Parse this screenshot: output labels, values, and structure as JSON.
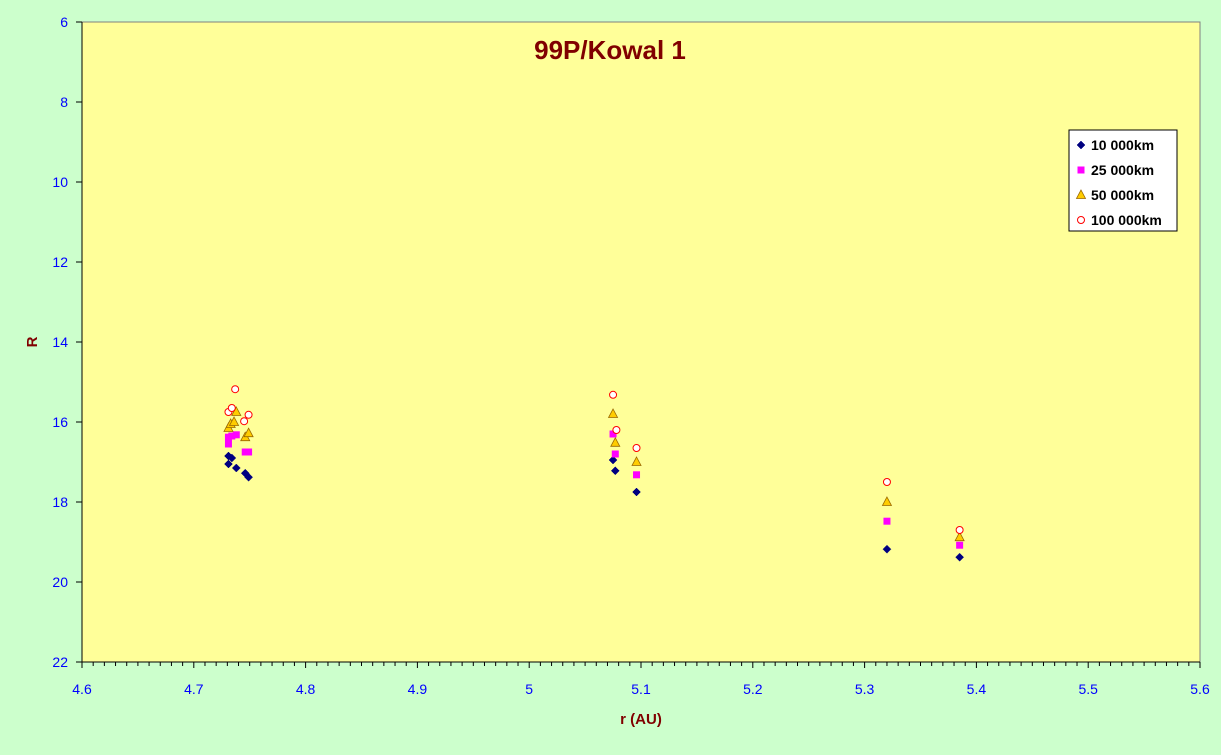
{
  "chart_data": {
    "type": "scatter",
    "title": "99P/Kowal 1",
    "xlabel": "r (AU)",
    "ylabel": "R",
    "xlim": [
      4.6,
      5.6
    ],
    "ylim": [
      6,
      22
    ],
    "y_inverted": true,
    "x_ticks": [
      "4.6",
      "4.7",
      "4.8",
      "4.9",
      "5",
      "5.1",
      "5.2",
      "5.3",
      "5.4",
      "5.5",
      "5.6"
    ],
    "y_ticks": [
      "6",
      "8",
      "10",
      "12",
      "14",
      "16",
      "18",
      "20",
      "22"
    ],
    "grid": false,
    "legend_position": "top-right",
    "colors": {
      "plot_background": "#ffff99",
      "page_background": "#ccffcc",
      "title": "#800000",
      "axis_label": "#800000",
      "tick_label": "#0000ff"
    },
    "series": [
      {
        "name": "10 000km",
        "marker": "diamond",
        "color": "#000080",
        "points": [
          [
            4.731,
            16.85
          ],
          [
            4.731,
            17.05
          ],
          [
            4.734,
            16.9
          ],
          [
            4.738,
            17.15
          ],
          [
            4.746,
            17.28
          ],
          [
            4.749,
            17.38
          ],
          [
            5.075,
            16.95
          ],
          [
            5.077,
            17.22
          ],
          [
            5.096,
            17.75
          ],
          [
            5.32,
            19.18
          ],
          [
            5.385,
            19.38
          ]
        ]
      },
      {
        "name": "25 000km",
        "marker": "square",
        "color": "#ff00ff",
        "points": [
          [
            4.731,
            16.55
          ],
          [
            4.731,
            16.38
          ],
          [
            4.734,
            16.35
          ],
          [
            4.738,
            16.32
          ],
          [
            4.746,
            16.75
          ],
          [
            4.749,
            16.75
          ],
          [
            5.075,
            16.3
          ],
          [
            5.077,
            16.8
          ],
          [
            5.096,
            17.32
          ],
          [
            5.32,
            18.48
          ],
          [
            5.385,
            19.08
          ]
        ]
      },
      {
        "name": "50 000km",
        "marker": "triangle",
        "color": "#ffcc00",
        "points": [
          [
            4.731,
            16.15
          ],
          [
            4.733,
            16.05
          ],
          [
            4.736,
            16.0
          ],
          [
            4.738,
            15.75
          ],
          [
            4.746,
            16.38
          ],
          [
            4.749,
            16.28
          ],
          [
            5.075,
            15.8
          ],
          [
            5.077,
            16.52
          ],
          [
            5.096,
            17.0
          ],
          [
            5.32,
            18.0
          ],
          [
            5.385,
            18.88
          ]
        ]
      },
      {
        "name": "100 000km",
        "marker": "circle",
        "color": "#ff0000",
        "points": [
          [
            4.731,
            15.75
          ],
          [
            4.734,
            15.65
          ],
          [
            4.737,
            15.18
          ],
          [
            4.745,
            15.98
          ],
          [
            4.749,
            15.82
          ],
          [
            5.075,
            15.32
          ],
          [
            5.078,
            16.2
          ],
          [
            5.096,
            16.65
          ],
          [
            5.32,
            17.5
          ],
          [
            5.385,
            18.7
          ]
        ]
      }
    ]
  }
}
